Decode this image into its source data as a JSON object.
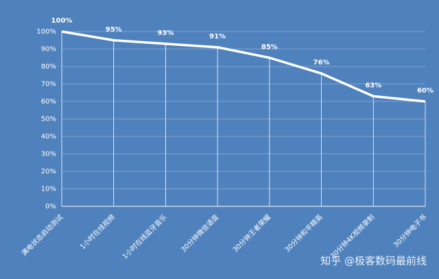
{
  "chart_data": {
    "type": "line",
    "categories": [
      "满电状态启动测试",
      "1小时在线视频",
      "1小时在线蓝牙音乐",
      "30分钟微信语音",
      "30分钟王者荣耀",
      "30分钟和平精英",
      "30分钟4K视频录制",
      "30分钟电子书"
    ],
    "values": [
      100,
      95,
      93,
      91,
      85,
      76,
      63,
      60
    ],
    "value_labels": [
      "100%",
      "95%",
      "93%",
      "91%",
      "85%",
      "76%",
      "63%",
      "60%"
    ],
    "color": "#ffffff",
    "ylim": [
      0,
      100
    ],
    "yticks": [
      {
        "value": 0,
        "label": "0%"
      },
      {
        "value": 10,
        "label": "10%"
      },
      {
        "value": 20,
        "label": "20%"
      },
      {
        "value": 30,
        "label": "30%"
      },
      {
        "value": 40,
        "label": "40%"
      },
      {
        "value": 50,
        "label": "50%"
      },
      {
        "value": 60,
        "label": "60%"
      },
      {
        "value": 70,
        "label": "70%"
      },
      {
        "value": 80,
        "label": "80%"
      },
      {
        "value": 90,
        "label": "90%"
      },
      {
        "value": 100,
        "label": "100%"
      }
    ],
    "grid": true
  },
  "watermark": "知乎 @极客数码最前线"
}
